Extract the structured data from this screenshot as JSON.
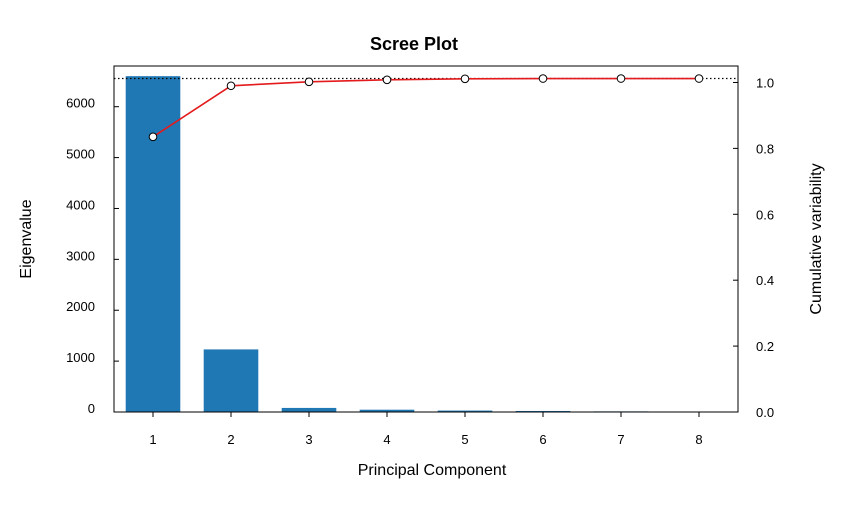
{
  "chart_data": {
    "type": "bar",
    "title": "Scree Plot",
    "xlabel": "Principal Component",
    "ylabel": "Eigenvalue",
    "y2label": "Cumulative variability",
    "categories": [
      "1",
      "2",
      "3",
      "4",
      "5",
      "6",
      "7",
      "8"
    ],
    "series": [
      {
        "type": "bar",
        "axis": "left",
        "values": [
          6600,
          1230,
          80,
          45,
          28,
          20,
          12,
          5
        ]
      },
      {
        "type": "line",
        "axis": "right",
        "values": [
          0.835,
          0.99,
          1.002,
          1.008,
          1.011,
          1.012,
          1.012,
          1.012
        ]
      }
    ],
    "ylim": [
      0,
      6800
    ],
    "y2lim": [
      0.0,
      1.05
    ],
    "yticks": [
      0,
      1000,
      2000,
      3000,
      4000,
      5000,
      6000
    ],
    "ytick_labels": [
      "0",
      "1000",
      "2000",
      "3000",
      "4000",
      "5000",
      "6000"
    ],
    "y2ticks": [
      0.0,
      0.2,
      0.4,
      0.6,
      0.8,
      1.0
    ],
    "y2tick_labels": [
      "0.0",
      "0.2",
      "0.4",
      "0.6",
      "0.8",
      "1.0"
    ],
    "reference_line": {
      "axis": "right",
      "value": 1.012,
      "style": "dotted"
    },
    "grid": false,
    "legend": "none",
    "colors": {
      "bar": "#1f77b4",
      "line": "#e41a1c",
      "marker_fill": "#ffffff",
      "marker_edge": "#000000",
      "reference": "#000000"
    }
  }
}
